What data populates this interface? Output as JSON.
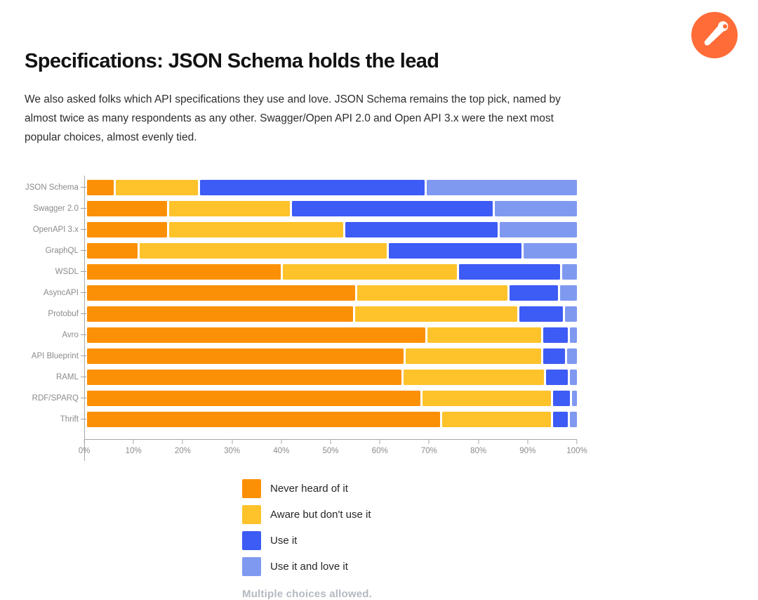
{
  "logo": {
    "name": "postman-logo",
    "bg_color": "#FF6C37"
  },
  "header": {
    "title": "Specifications: JSON Schema holds the lead",
    "paragraph": "We also asked folks which API specifications they use and love. JSON Schema remains the top pick, named by almost twice as many respondents as any other. Swagger/Open API 2.0 and Open API 3.x were the next most popular choices, almost evenly tied."
  },
  "chart_data": {
    "type": "bar",
    "orientation": "horizontal",
    "stacked": true,
    "normalized": true,
    "unit": "%",
    "xlim": [
      0,
      100
    ],
    "x_ticks": [
      "0%",
      "10%",
      "20%",
      "30%",
      "40%",
      "50%",
      "60%",
      "70%",
      "80%",
      "90%",
      "100%"
    ],
    "grid": false,
    "legend_position": "bottom",
    "categories": [
      "JSON Schema",
      "Swagger 2.0",
      "OpenAPI 3.x",
      "GraphQL",
      "WSDL",
      "AsyncAPI",
      "Protobuf",
      "Avro",
      "API Blueprint",
      "RAML",
      "RDF/SPARQ",
      "Thrift"
    ],
    "series": [
      {
        "name": "Never heard of it",
        "color": "#FB9006",
        "values": [
          5.5,
          16.5,
          16.5,
          10.5,
          40,
          55.5,
          55,
          70,
          65.5,
          65,
          69,
          73
        ]
      },
      {
        "name": "Aware but don't use it",
        "color": "#FEC22B",
        "values": [
          17,
          25,
          36,
          51,
          36,
          31,
          33.5,
          23.5,
          28,
          29,
          26.5,
          22.5
        ]
      },
      {
        "name": "Use it",
        "color": "#3D5BF5",
        "values": [
          46.5,
          41.5,
          31.5,
          27.5,
          21,
          10,
          9,
          5,
          4.5,
          4.5,
          3.5,
          3
        ]
      },
      {
        "name": "Use it and love it",
        "color": "#8099F0",
        "values": [
          31,
          17,
          16,
          11,
          3,
          3.5,
          2.5,
          1.5,
          2,
          1.5,
          1,
          1.5
        ]
      }
    ],
    "footnote": "Multiple choices allowed."
  }
}
